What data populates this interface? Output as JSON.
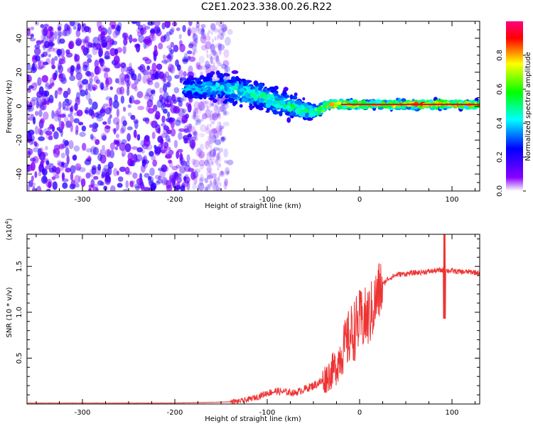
{
  "title": "C2E1.2023.338.00.26.R22",
  "chart_data": [
    {
      "type": "heatmap",
      "title": "C2E1.2023.338.00.26.R22",
      "xlabel": "Height of straight line (km)",
      "ylabel": "Frequency (Hz)",
      "xlim": [
        -360,
        130
      ],
      "ylim": [
        -50,
        50
      ],
      "xticks": [
        "-300",
        "-200",
        "-100",
        "0",
        "100"
      ],
      "yticks": [
        "-40",
        "-20",
        "0",
        "20",
        "40"
      ],
      "colorbar": {
        "label": "Normalized spectral amplitude",
        "range": [
          0,
          1
        ],
        "ticks": [
          "0.0",
          "0.2",
          "0.4",
          "0.6",
          "0.8"
        ],
        "colormap": [
          "#ffffff",
          "#8800ff",
          "#0000ff",
          "#00ffff",
          "#00ff00",
          "#ffff00",
          "#ff0000",
          "#ff0080"
        ]
      },
      "signal_track": {
        "x": [
          -190,
          -170,
          -150,
          -130,
          -110,
          -90,
          -70,
          -55,
          -45,
          -35,
          -20,
          0,
          20,
          50,
          80,
          100,
          130
        ],
        "center_hz": [
          10,
          11,
          11,
          9,
          6,
          3,
          -1,
          -3,
          -3,
          1,
          1,
          1,
          1,
          1,
          1,
          1,
          1
        ],
        "width_hz": [
          8,
          10,
          13,
          12,
          10,
          11,
          10,
          6,
          4,
          3,
          3,
          3,
          3,
          3,
          3,
          3,
          3
        ],
        "amplitude": [
          0.3,
          0.35,
          0.35,
          0.4,
          0.45,
          0.45,
          0.45,
          0.5,
          0.6,
          0.7,
          0.8,
          0.7,
          0.72,
          0.8,
          0.82,
          0.75,
          0.75
        ]
      },
      "noise_region": {
        "x_range": [
          -360,
          -180
        ],
        "amplitude_range": [
          0.05,
          0.3
        ]
      },
      "grid": false
    },
    {
      "type": "line",
      "xlabel": "Height of straight line (km)",
      "ylabel": "SNR (10 * v/v)",
      "y_multiplier": "(x10",
      "y_multiplier_exp": "4",
      "y_multiplier_close": ")",
      "xlim": [
        -360,
        130
      ],
      "ylim": [
        0,
        1.85
      ],
      "xticks": [
        "-300",
        "-200",
        "-100",
        "0",
        "100"
      ],
      "yticks": [
        "0.5",
        "1.0",
        "1.5"
      ],
      "color": "#ee3333",
      "series": [
        {
          "x": [
            -360,
            -300,
            -250,
            -200,
            -150,
            -130,
            -120,
            -110,
            -100,
            -90,
            -80,
            -70,
            -60,
            -50,
            -40,
            -30,
            -25,
            -20,
            -15,
            -10,
            -5,
            0,
            5,
            10,
            15,
            20,
            25,
            30,
            40,
            50,
            60,
            70,
            80,
            90,
            100,
            110,
            120,
            130
          ],
          "values": [
            0.01,
            0.01,
            0.01,
            0.01,
            0.02,
            0.03,
            0.05,
            0.08,
            0.12,
            0.14,
            0.13,
            0.12,
            0.16,
            0.2,
            0.25,
            0.35,
            0.42,
            0.55,
            0.65,
            0.75,
            0.82,
            0.9,
            0.92,
            0.95,
            1.05,
            1.2,
            1.3,
            1.36,
            1.41,
            1.42,
            1.43,
            1.44,
            1.45,
            1.46,
            1.45,
            1.44,
            1.44,
            1.43
          ]
        }
      ],
      "grid": false
    }
  ]
}
